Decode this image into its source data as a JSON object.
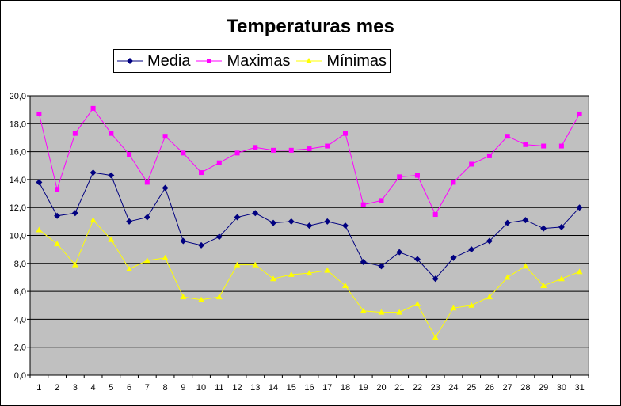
{
  "chart_data": {
    "type": "line",
    "title": "Temperaturas mes",
    "xlabel": "",
    "ylabel": "",
    "ylim": [
      0,
      20
    ],
    "yticks": [
      "0,0",
      "2,0",
      "4,0",
      "6,0",
      "8,0",
      "10,0",
      "12,0",
      "14,0",
      "16,0",
      "18,0",
      "20,0"
    ],
    "categories": [
      "1",
      "2",
      "3",
      "4",
      "5",
      "6",
      "7",
      "8",
      "9",
      "10",
      "11",
      "12",
      "13",
      "14",
      "15",
      "16",
      "17",
      "18",
      "19",
      "20",
      "21",
      "22",
      "23",
      "24",
      "25",
      "26",
      "27",
      "28",
      "29",
      "30",
      "31"
    ],
    "grid": true,
    "legend_position": "top",
    "plot_background": "#c0c0c0",
    "series": [
      {
        "name": "Media",
        "color": "#000080",
        "marker": "diamond",
        "values": [
          13.8,
          11.4,
          11.6,
          14.5,
          14.3,
          11.0,
          11.3,
          13.4,
          9.6,
          9.3,
          9.9,
          11.3,
          11.6,
          10.9,
          11.0,
          10.7,
          11.0,
          10.7,
          8.1,
          7.8,
          8.8,
          8.3,
          6.9,
          8.4,
          9.0,
          9.6,
          10.9,
          11.1,
          10.5,
          10.6,
          12.0
        ]
      },
      {
        "name": "Maximas",
        "color": "#ff00ff",
        "marker": "square",
        "values": [
          18.7,
          13.3,
          17.3,
          19.1,
          17.3,
          15.8,
          13.8,
          17.1,
          15.9,
          14.5,
          15.2,
          15.9,
          16.3,
          16.1,
          16.1,
          16.2,
          16.4,
          17.3,
          12.2,
          12.5,
          14.2,
          14.3,
          11.5,
          13.8,
          15.1,
          15.7,
          17.1,
          16.5,
          16.4,
          16.4,
          18.7
        ]
      },
      {
        "name": "Mínimas",
        "color": "#ffff00",
        "marker": "triangle",
        "values": [
          10.4,
          9.4,
          7.9,
          11.1,
          9.7,
          7.6,
          8.2,
          8.4,
          5.6,
          5.4,
          5.6,
          7.9,
          7.9,
          6.9,
          7.2,
          7.3,
          7.5,
          6.4,
          4.6,
          4.5,
          4.5,
          5.1,
          2.7,
          4.8,
          5.0,
          5.6,
          7.0,
          7.8,
          6.4,
          6.9,
          7.4
        ]
      }
    ]
  }
}
